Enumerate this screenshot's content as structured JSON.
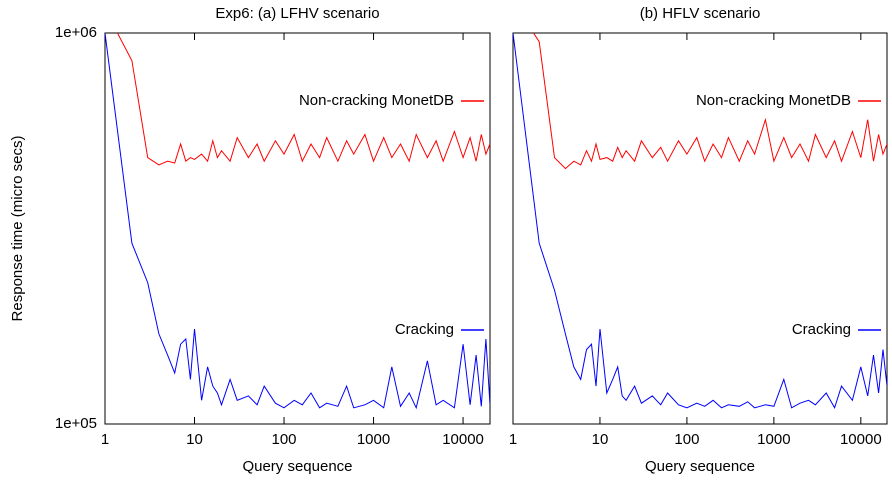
{
  "chart_data": [
    {
      "type": "line",
      "title": "Exp6:   (a) LFHV scenario",
      "x_label": "Query sequence",
      "y_label": "Response time (micro secs)",
      "x_scale": "log",
      "y_scale": "log",
      "xlim": [
        1,
        20000
      ],
      "xticks": [
        1,
        10,
        100,
        1000,
        10000
      ],
      "ylim": [
        100000,
        1000000
      ],
      "yticks": [
        {
          "value": 100000,
          "label": "1e+05"
        },
        {
          "value": 1000000,
          "label": "1e+06"
        }
      ],
      "x": [
        1,
        2,
        3,
        4,
        5,
        6,
        7,
        8,
        9,
        10,
        12,
        14,
        16,
        18,
        20,
        25,
        30,
        40,
        50,
        60,
        80,
        100,
        130,
        160,
        200,
        250,
        300,
        400,
        500,
        600,
        800,
        1000,
        1300,
        1600,
        2000,
        2500,
        3000,
        4000,
        5000,
        6000,
        8000,
        10000,
        12000,
        14000,
        16000,
        18000,
        20000
      ],
      "series": [
        {
          "name": "Non-cracking MonetDB",
          "color": "#ff0000",
          "values": [
            1150000,
            850000,
            480000,
            460000,
            470000,
            465000,
            520000,
            470000,
            480000,
            475000,
            490000,
            470000,
            530000,
            480000,
            500000,
            470000,
            540000,
            480000,
            520000,
            470000,
            530000,
            490000,
            550000,
            470000,
            520000,
            480000,
            540000,
            470000,
            530000,
            490000,
            550000,
            470000,
            540000,
            480000,
            520000,
            470000,
            550000,
            480000,
            530000,
            470000,
            560000,
            480000,
            540000,
            470000,
            550000,
            490000,
            520000
          ]
        },
        {
          "name": "Cracking",
          "color": "#0000ff",
          "values": [
            1000000,
            290000,
            230000,
            170000,
            150000,
            135000,
            160000,
            165000,
            130000,
            175000,
            115000,
            140000,
            125000,
            120000,
            112000,
            130000,
            115000,
            118000,
            112000,
            125000,
            113000,
            110000,
            115000,
            112000,
            120000,
            110000,
            113000,
            111000,
            125000,
            110000,
            112000,
            115000,
            110000,
            140000,
            111000,
            120000,
            110000,
            145000,
            112000,
            115000,
            110000,
            160000,
            112000,
            150000,
            111000,
            165000,
            112000
          ]
        }
      ]
    },
    {
      "type": "line",
      "title": "(b) HFLV scenario",
      "x_label": "Query sequence",
      "x_scale": "log",
      "y_scale": "log",
      "xlim": [
        1,
        20000
      ],
      "xticks": [
        1,
        10,
        100,
        1000,
        10000
      ],
      "ylim": [
        100000,
        1000000
      ],
      "x": [
        1,
        2,
        3,
        4,
        5,
        6,
        7,
        8,
        9,
        10,
        12,
        14,
        16,
        18,
        20,
        25,
        30,
        40,
        50,
        60,
        80,
        100,
        130,
        160,
        200,
        250,
        300,
        400,
        500,
        600,
        800,
        1000,
        1300,
        1600,
        2000,
        2500,
        3000,
        4000,
        5000,
        6000,
        8000,
        10000,
        12000,
        14000,
        16000,
        18000,
        20000
      ],
      "series": [
        {
          "name": "Non-cracking MonetDB",
          "color": "#ff0000",
          "values": [
            1200000,
            950000,
            480000,
            450000,
            470000,
            460000,
            500000,
            470000,
            520000,
            475000,
            480000,
            470000,
            510000,
            480000,
            500000,
            470000,
            530000,
            480000,
            510000,
            470000,
            530000,
            490000,
            540000,
            470000,
            520000,
            480000,
            540000,
            470000,
            530000,
            490000,
            600000,
            470000,
            540000,
            480000,
            520000,
            470000,
            550000,
            480000,
            530000,
            470000,
            560000,
            480000,
            600000,
            470000,
            550000,
            490000,
            520000
          ]
        },
        {
          "name": "Cracking",
          "color": "#0000ff",
          "values": [
            1000000,
            290000,
            220000,
            170000,
            140000,
            130000,
            155000,
            160000,
            125000,
            175000,
            120000,
            130000,
            140000,
            118000,
            115000,
            125000,
            113000,
            118000,
            112000,
            120000,
            112000,
            110000,
            113000,
            111000,
            115000,
            110000,
            112000,
            111000,
            114000,
            110000,
            112000,
            111000,
            130000,
            110000,
            113000,
            115000,
            112000,
            120000,
            110000,
            125000,
            115000,
            140000,
            118000,
            150000,
            120000,
            155000,
            125000
          ]
        }
      ]
    }
  ]
}
